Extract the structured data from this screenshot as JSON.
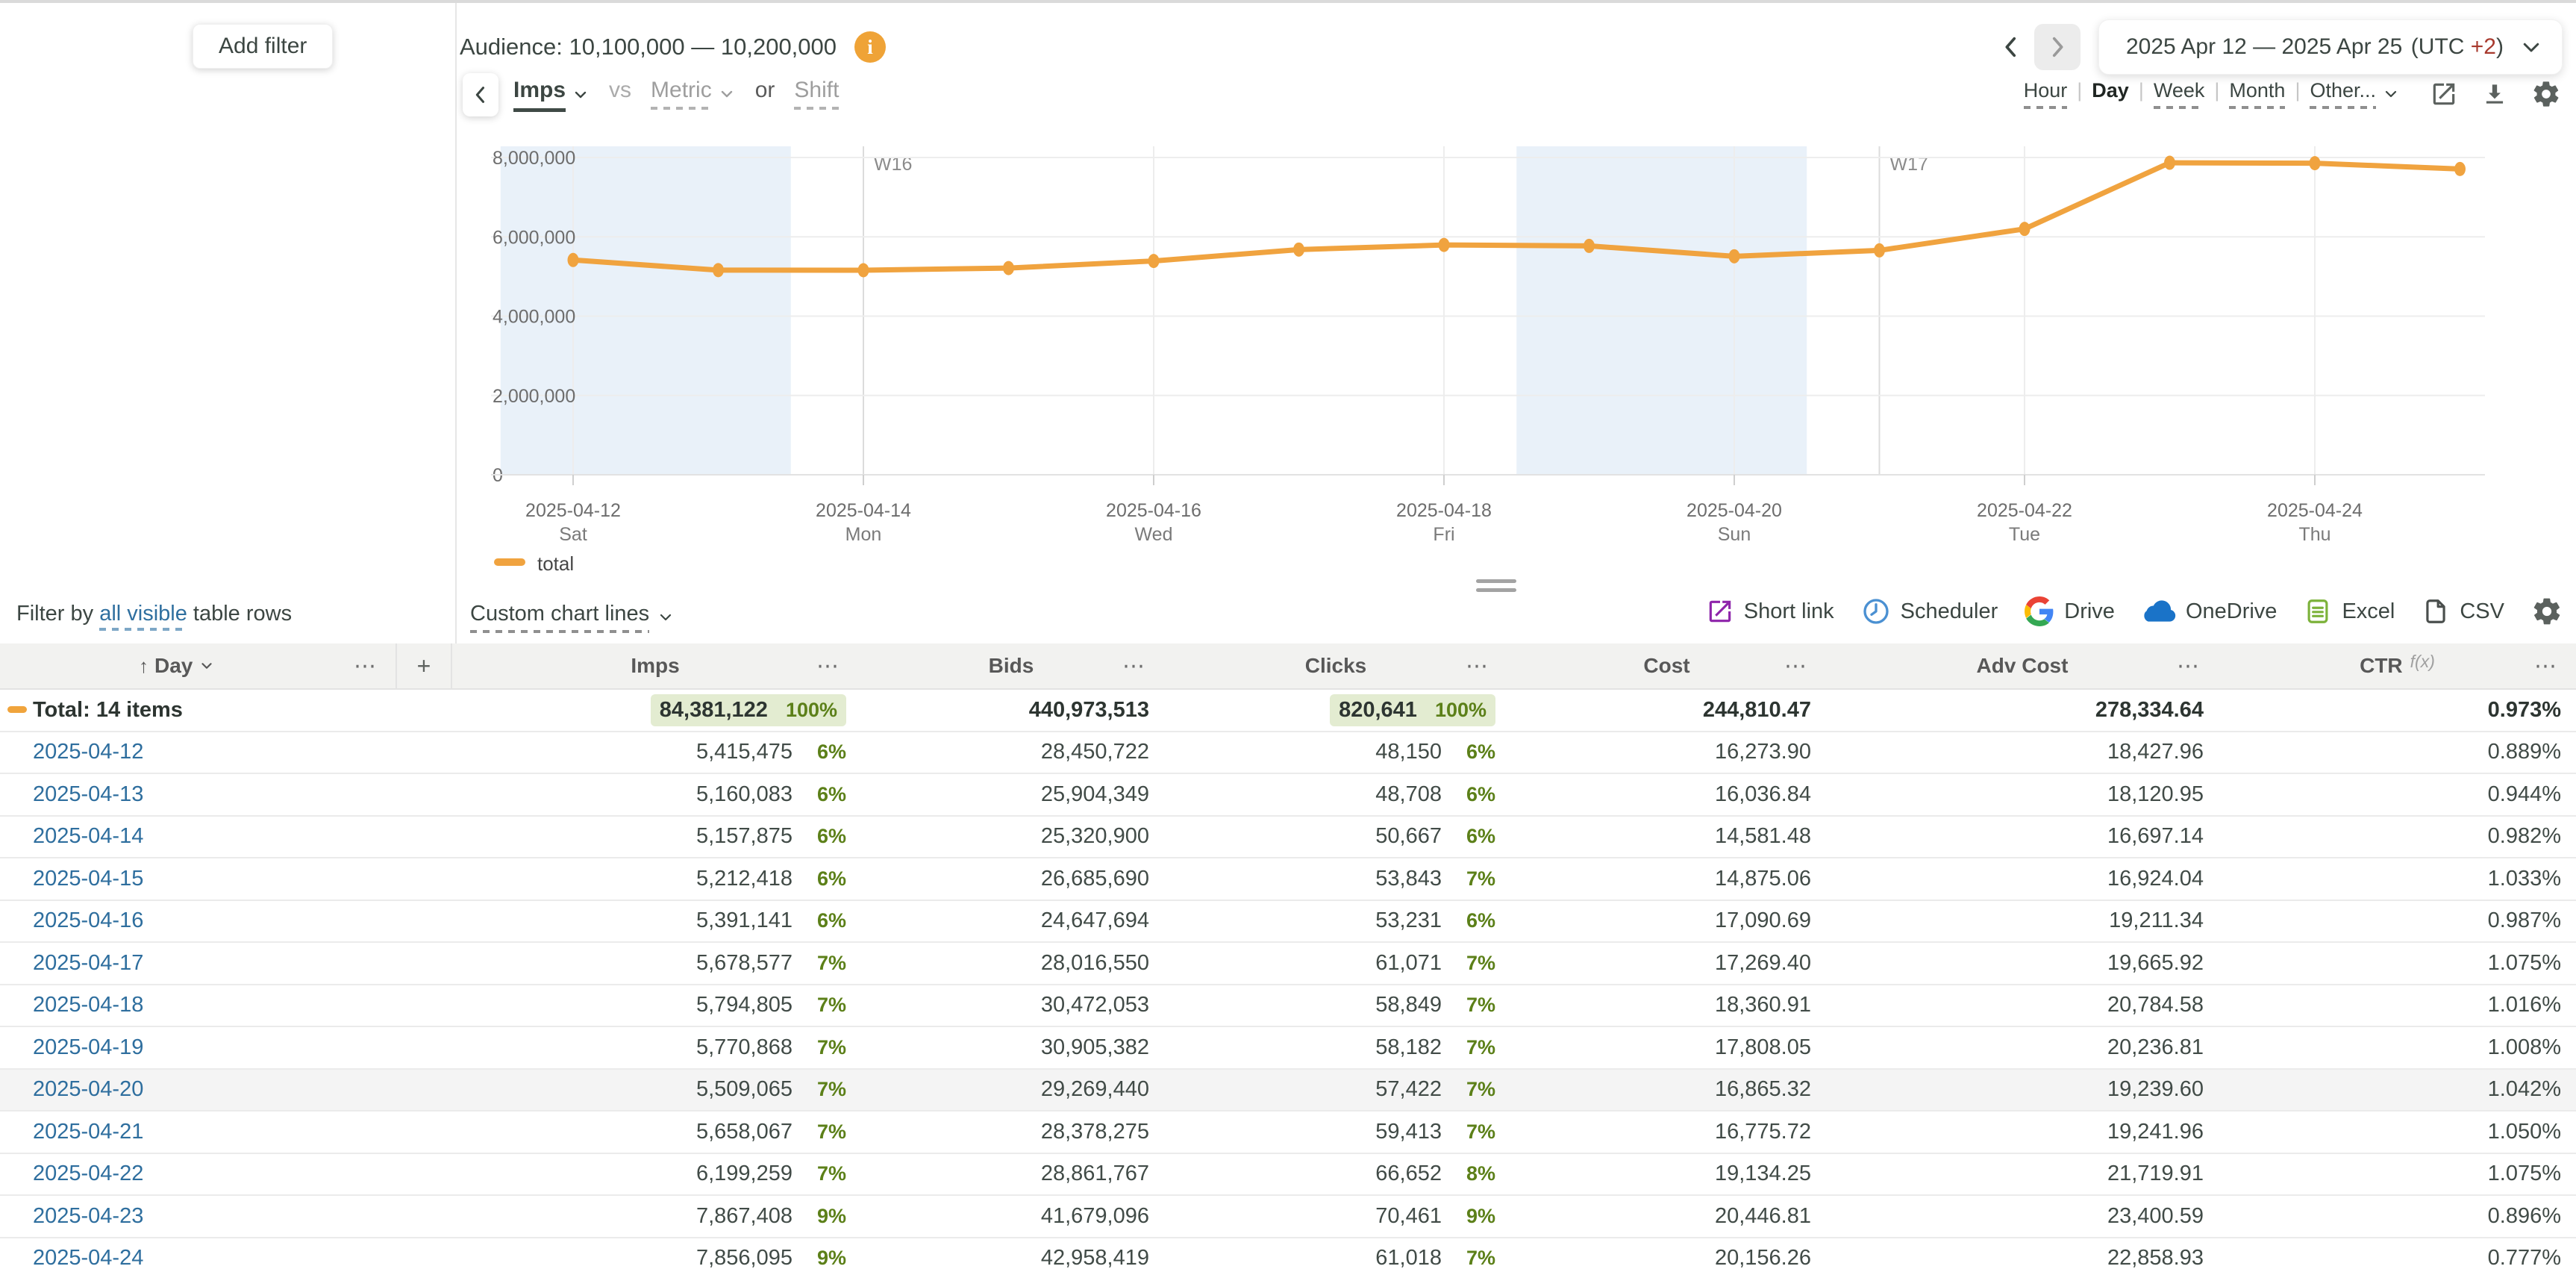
{
  "topbar": {
    "add_filter": "Add filter",
    "audience_label": "Audience: 10,100,000 — 10,200,000",
    "info_glyph": "i",
    "date_range": "2025 Apr 12 — 2025 Apr 25",
    "utc_prefix": "(UTC ",
    "utc_offset": "+2",
    "utc_suffix": ")"
  },
  "controls": {
    "metric_selected": "Imps",
    "vs": "vs",
    "metric_placeholder": "Metric",
    "or": "or",
    "shift": "Shift",
    "granularities": [
      "Hour",
      "Day",
      "Week",
      "Month",
      "Other..."
    ],
    "selected_granularity": "Day"
  },
  "chart_data": {
    "type": "line",
    "title": "",
    "x": [
      "2025-04-12",
      "2025-04-13",
      "2025-04-14",
      "2025-04-15",
      "2025-04-16",
      "2025-04-17",
      "2025-04-18",
      "2025-04-19",
      "2025-04-20",
      "2025-04-21",
      "2025-04-22",
      "2025-04-23",
      "2025-04-24",
      "2025-04-25"
    ],
    "series": [
      {
        "name": "total",
        "color": "#F0A33F",
        "values": [
          5415475,
          5160083,
          5157875,
          5212418,
          5391141,
          5678577,
          5794805,
          5770868,
          5509065,
          5658067,
          6199259,
          7867408,
          7856095,
          7709986
        ]
      }
    ],
    "ylim": [
      0,
      8000000
    ],
    "y_ticks": [
      {
        "value": 0,
        "label": "0"
      },
      {
        "value": 2000000,
        "label": "2,000,000"
      },
      {
        "value": 4000000,
        "label": "4,000,000"
      },
      {
        "value": 6000000,
        "label": "6,000,000"
      },
      {
        "value": 8000000,
        "label": "8,000,000"
      }
    ],
    "x_tick_labels": [
      {
        "date": "2025-04-12",
        "weekday": "Sat"
      },
      {
        "date": "2025-04-14",
        "weekday": "Mon"
      },
      {
        "date": "2025-04-16",
        "weekday": "Wed"
      },
      {
        "date": "2025-04-18",
        "weekday": "Fri"
      },
      {
        "date": "2025-04-20",
        "weekday": "Sun"
      },
      {
        "date": "2025-04-22",
        "weekday": "Tue"
      },
      {
        "date": "2025-04-24",
        "weekday": "Thu"
      }
    ],
    "week_markers": [
      {
        "label": "W16",
        "date": "2025-04-14"
      },
      {
        "label": "W17",
        "date": "2025-04-21"
      }
    ],
    "weekend_bands": [
      [
        "2025-04-12",
        "2025-04-13"
      ],
      [
        "2025-04-19",
        "2025-04-20"
      ]
    ],
    "band_color": "#e9f1f9",
    "legend": [
      "total"
    ],
    "legend_position": "bottom-left",
    "grid": true
  },
  "filter_row": {
    "prefix": "Filter by ",
    "link": "all visible",
    "suffix": " table rows",
    "custom_lines": "Custom chart lines",
    "exports": [
      {
        "icon": "short-link-icon",
        "label": "Short link"
      },
      {
        "icon": "scheduler-icon",
        "label": "Scheduler"
      },
      {
        "icon": "google-drive-icon",
        "label": "Drive"
      },
      {
        "icon": "onedrive-icon",
        "label": "OneDrive"
      },
      {
        "icon": "excel-icon",
        "label": "Excel"
      },
      {
        "icon": "csv-icon",
        "label": "CSV"
      }
    ]
  },
  "table": {
    "columns": {
      "day": "Day",
      "imps": "Imps",
      "bids": "Bids",
      "clicks": "Clicks",
      "cost": "Cost",
      "adv_cost": "Adv Cost",
      "ctr": "CTR",
      "ctr_fx": "f(x)",
      "plus": "+",
      "menu_dots": "⋯",
      "sort_arrow": "↑"
    },
    "total": {
      "label": "Total: 14 items",
      "imps": "84,381,122",
      "imps_pct": "100%",
      "bids": "440,973,513",
      "clicks": "820,641",
      "clicks_pct": "100%",
      "cost": "244,810.47",
      "adv_cost": "278,334.64",
      "ctr": "0.973%"
    },
    "highlighted_date": "2025-04-20",
    "rows": [
      {
        "date": "2025-04-12",
        "imps": "5,415,475",
        "imps_pct": "6%",
        "bids": "28,450,722",
        "clicks": "48,150",
        "clicks_pct": "6%",
        "cost": "16,273.90",
        "adv_cost": "18,427.96",
        "ctr": "0.889%"
      },
      {
        "date": "2025-04-13",
        "imps": "5,160,083",
        "imps_pct": "6%",
        "bids": "25,904,349",
        "clicks": "48,708",
        "clicks_pct": "6%",
        "cost": "16,036.84",
        "adv_cost": "18,120.95",
        "ctr": "0.944%"
      },
      {
        "date": "2025-04-14",
        "imps": "5,157,875",
        "imps_pct": "6%",
        "bids": "25,320,900",
        "clicks": "50,667",
        "clicks_pct": "6%",
        "cost": "14,581.48",
        "adv_cost": "16,697.14",
        "ctr": "0.982%"
      },
      {
        "date": "2025-04-15",
        "imps": "5,212,418",
        "imps_pct": "6%",
        "bids": "26,685,690",
        "clicks": "53,843",
        "clicks_pct": "7%",
        "cost": "14,875.06",
        "adv_cost": "16,924.04",
        "ctr": "1.033%"
      },
      {
        "date": "2025-04-16",
        "imps": "5,391,141",
        "imps_pct": "6%",
        "bids": "24,647,694",
        "clicks": "53,231",
        "clicks_pct": "6%",
        "cost": "17,090.69",
        "adv_cost": "19,211.34",
        "ctr": "0.987%"
      },
      {
        "date": "2025-04-17",
        "imps": "5,678,577",
        "imps_pct": "7%",
        "bids": "28,016,550",
        "clicks": "61,071",
        "clicks_pct": "7%",
        "cost": "17,269.40",
        "adv_cost": "19,665.92",
        "ctr": "1.075%"
      },
      {
        "date": "2025-04-18",
        "imps": "5,794,805",
        "imps_pct": "7%",
        "bids": "30,472,053",
        "clicks": "58,849",
        "clicks_pct": "7%",
        "cost": "18,360.91",
        "adv_cost": "20,784.58",
        "ctr": "1.016%"
      },
      {
        "date": "2025-04-19",
        "imps": "5,770,868",
        "imps_pct": "7%",
        "bids": "30,905,382",
        "clicks": "58,182",
        "clicks_pct": "7%",
        "cost": "17,808.05",
        "adv_cost": "20,236.81",
        "ctr": "1.008%"
      },
      {
        "date": "2025-04-20",
        "imps": "5,509,065",
        "imps_pct": "7%",
        "bids": "29,269,440",
        "clicks": "57,422",
        "clicks_pct": "7%",
        "cost": "16,865.32",
        "adv_cost": "19,239.60",
        "ctr": "1.042%"
      },
      {
        "date": "2025-04-21",
        "imps": "5,658,067",
        "imps_pct": "7%",
        "bids": "28,378,275",
        "clicks": "59,413",
        "clicks_pct": "7%",
        "cost": "16,775.72",
        "adv_cost": "19,241.96",
        "ctr": "1.050%"
      },
      {
        "date": "2025-04-22",
        "imps": "6,199,259",
        "imps_pct": "7%",
        "bids": "28,861,767",
        "clicks": "66,652",
        "clicks_pct": "8%",
        "cost": "19,134.25",
        "adv_cost": "21,719.91",
        "ctr": "1.075%"
      },
      {
        "date": "2025-04-23",
        "imps": "7,867,408",
        "imps_pct": "9%",
        "bids": "41,679,096",
        "clicks": "70,461",
        "clicks_pct": "9%",
        "cost": "20,446.81",
        "adv_cost": "23,400.59",
        "ctr": "0.896%"
      },
      {
        "date": "2025-04-24",
        "imps": "7,856,095",
        "imps_pct": "9%",
        "bids": "42,958,419",
        "clicks": "61,018",
        "clicks_pct": "7%",
        "cost": "20,156.26",
        "adv_cost": "22,858.93",
        "ctr": "0.777%"
      }
    ]
  },
  "colors": {
    "accent_orange": "#F0A33F",
    "link_blue": "#2e6e9e",
    "pct_green": "#5c8019",
    "pct_green_bg": "#e3ecd1",
    "weekend_band": "#e9f1f9",
    "utc_red": "#a83a2e"
  }
}
